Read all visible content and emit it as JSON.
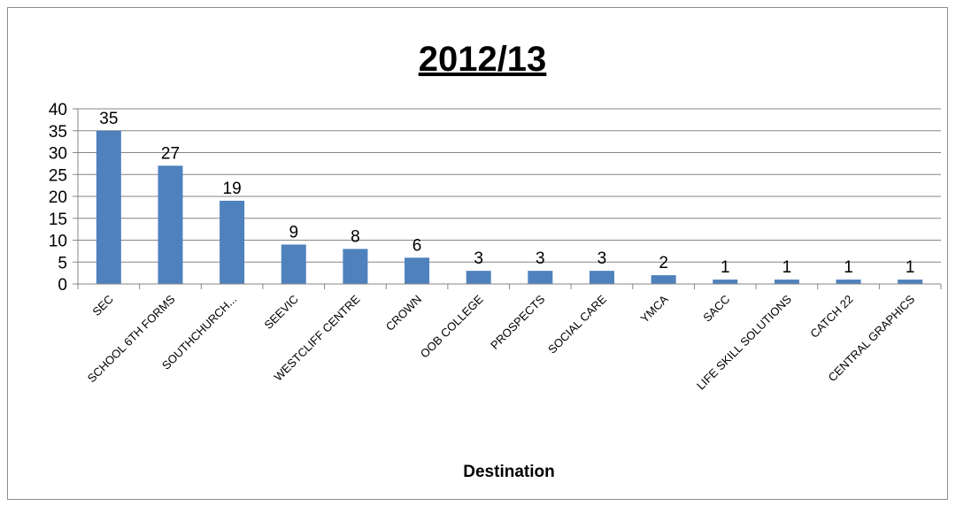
{
  "chart_data": {
    "type": "bar",
    "title": "2012/13",
    "xlabel": "Destination",
    "ylabel": "",
    "ylim": [
      0,
      40
    ],
    "yticks": [
      0,
      5,
      10,
      15,
      20,
      25,
      30,
      35,
      40
    ],
    "grid": true,
    "legend": "none",
    "bar_color": "#4f81bd",
    "categories": [
      "SEC",
      "SCHOOL 6TH FORMS",
      "SOUTHCHURCH...",
      "SEEVIC",
      "WESTCLIFF CENTRE",
      "CROWN",
      "OOB COLLEGE",
      "PROSPECTS",
      "SOCIAL CARE",
      "YMCA",
      "SACC",
      "LIFE SKILL SOLUTIONS",
      "CATCH 22",
      "CENTRAL GRAPHICS"
    ],
    "values": [
      35,
      27,
      19,
      9,
      8,
      6,
      3,
      3,
      3,
      2,
      1,
      1,
      1,
      1
    ]
  }
}
